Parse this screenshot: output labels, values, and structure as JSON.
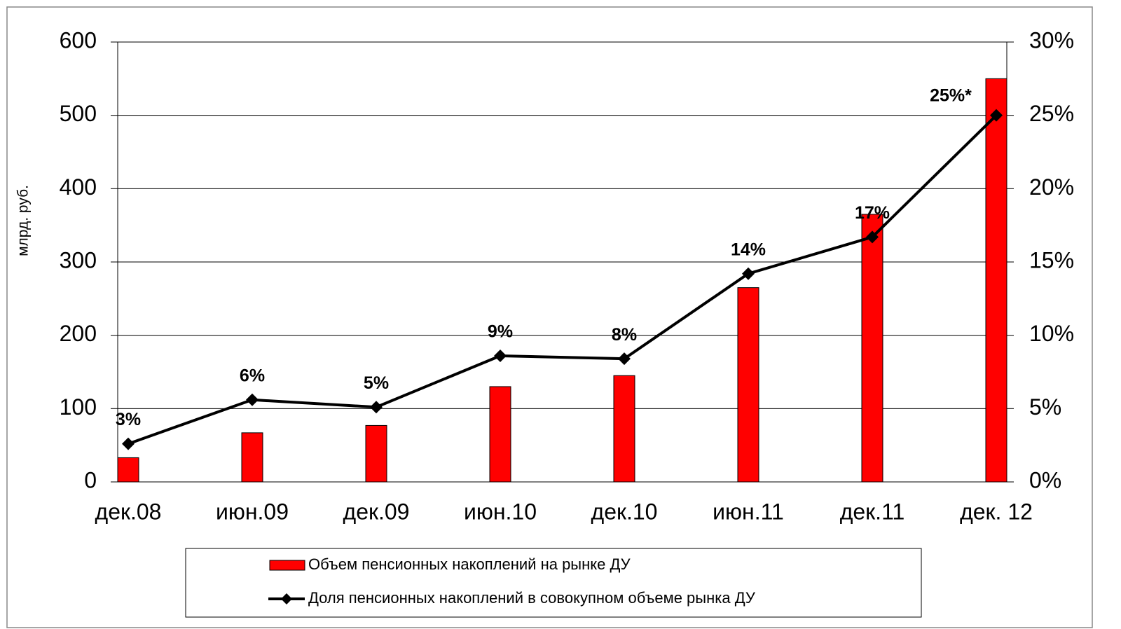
{
  "chart_data": {
    "type": "bar_line",
    "y_label": "млрд. руб.",
    "categories": [
      "дек.08",
      "июн.09",
      "дек.09",
      "июн.10",
      "дек.10",
      "июн.11",
      "дек.11",
      "дек. 12"
    ],
    "series": [
      {
        "name": "Объем пенсионных накоплений на рынке ДУ",
        "type": "bar",
        "color": "#ff0000",
        "values": [
          33,
          67,
          77,
          130,
          145,
          265,
          365,
          550
        ]
      },
      {
        "name": "Доля пенсионных накоплений в совокупном объеме рынка ДУ",
        "type": "line",
        "axis": "y2",
        "color": "#000000",
        "values": [
          2.6,
          5.6,
          5.1,
          8.6,
          8.4,
          14.2,
          16.7,
          25.0
        ],
        "value_labels": [
          "3%",
          "6%",
          "5%",
          "9%",
          "8%",
          "14%",
          "17%",
          "25%*"
        ]
      }
    ],
    "ylim": [
      0,
      600
    ],
    "yticks": [
      0,
      100,
      200,
      300,
      400,
      500,
      600
    ],
    "y2lim": [
      0,
      30
    ],
    "y2ticks": [
      {
        "value": 0,
        "label": "0%"
      },
      {
        "value": 5,
        "label": "5%"
      },
      {
        "value": 10,
        "label": "10%"
      },
      {
        "value": 15,
        "label": "15%"
      },
      {
        "value": 20,
        "label": "20%"
      },
      {
        "value": 25,
        "label": "25%"
      },
      {
        "value": 30,
        "label": "30%"
      }
    ],
    "grid": true
  }
}
